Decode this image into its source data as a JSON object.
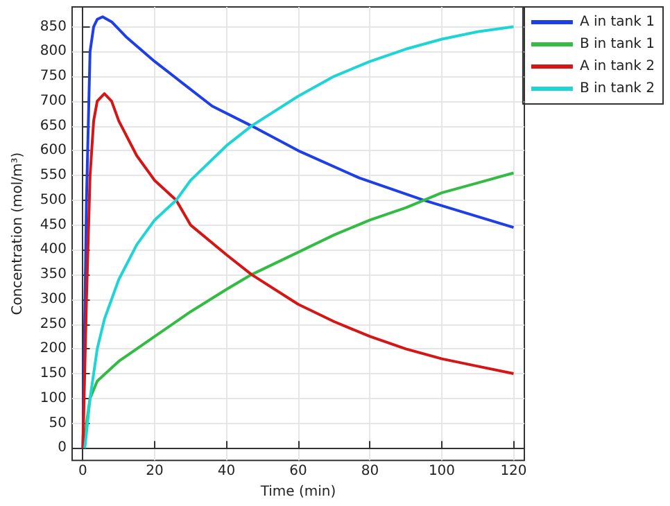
{
  "chart_data": {
    "type": "line",
    "xlabel": "Time (min)",
    "ylabel": "Concentration (mol/m³)",
    "xlim": [
      -3,
      123
    ],
    "xticks": [
      0,
      20,
      40,
      60,
      80,
      100,
      120
    ],
    "ylim": [
      -25,
      890
    ],
    "yticks": [
      0,
      50,
      100,
      150,
      200,
      250,
      300,
      350,
      400,
      450,
      500,
      550,
      600,
      650,
      700,
      750,
      800,
      850
    ],
    "grid": true,
    "legend": "top right",
    "marker": "none",
    "line_style": "solid",
    "series": [
      {
        "name": "A in tank 1",
        "color": "#1f3fe6",
        "x": [
          0,
          1,
          2,
          3,
          4,
          5.5,
          8,
          12,
          20,
          28,
          36,
          47,
          60,
          77,
          95,
          120
        ],
        "values": [
          0,
          500,
          800,
          850,
          865,
          870,
          860,
          830,
          780,
          735,
          690,
          650,
          600,
          545,
          500,
          445
        ]
      },
      {
        "name": "B in tank 1",
        "color": "#33bb44",
        "x": [
          0.5,
          1,
          2,
          4,
          10,
          20,
          30,
          40,
          47,
          60,
          70,
          80,
          90,
          95,
          100,
          110,
          120
        ],
        "values": [
          0,
          50,
          100,
          135,
          175,
          225,
          275,
          320,
          350,
          395,
          430,
          460,
          485,
          500,
          515,
          535,
          555
        ]
      },
      {
        "name": "A in tank 2",
        "color": "#d41616",
        "x": [
          0,
          1,
          2,
          3,
          4,
          6,
          8,
          10,
          15,
          20,
          26,
          30,
          40,
          47,
          60,
          70,
          80,
          90,
          100,
          110,
          120
        ],
        "values": [
          0,
          300,
          550,
          660,
          700,
          715,
          700,
          660,
          590,
          540,
          500,
          450,
          390,
          350,
          290,
          255,
          225,
          200,
          180,
          165,
          150
        ]
      },
      {
        "name": "B in tank 2",
        "color": "#1fd4d4",
        "x": [
          0.5,
          1,
          2,
          4,
          6,
          10,
          15,
          20,
          26,
          30,
          40,
          47,
          60,
          70,
          80,
          90,
          100,
          110,
          120
        ],
        "values": [
          0,
          30,
          100,
          200,
          260,
          340,
          410,
          460,
          500,
          540,
          610,
          650,
          710,
          750,
          780,
          805,
          825,
          840,
          850
        ]
      }
    ]
  }
}
